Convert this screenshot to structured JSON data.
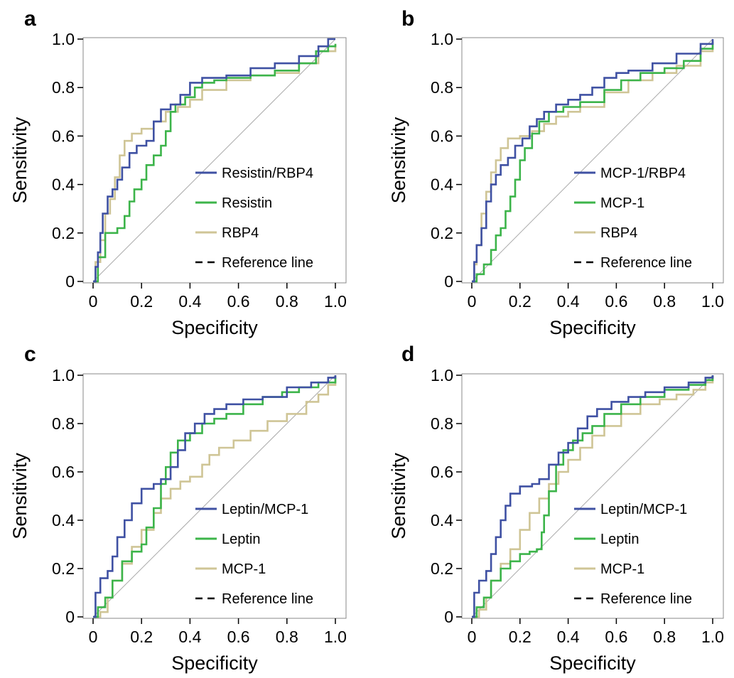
{
  "figure": {
    "panels": [
      {
        "letter": "a",
        "legend": [
          "Resistin/RBP4",
          "Resistin",
          "RBP4",
          "Reference line"
        ]
      },
      {
        "letter": "b",
        "legend": [
          "MCP-1/RBP4",
          "MCP-1",
          "RBP4",
          "Reference line"
        ]
      },
      {
        "letter": "c",
        "legend": [
          "Leptin/MCP-1",
          "Leptin",
          "MCP-1",
          "Reference line"
        ]
      },
      {
        "letter": "d",
        "legend": [
          "Leptin/MCP-1",
          "Leptin",
          "MCP-1",
          "Reference line"
        ]
      }
    ]
  },
  "colors": {
    "series1": "#3f51a3",
    "series2": "#3cb44a",
    "series3": "#cfc596",
    "reference": "#aaaaaa",
    "frame": "#888888"
  },
  "chart_data": [
    {
      "panel": "a",
      "type": "line",
      "xlabel": "Specificity",
      "ylabel": "Sensitivity",
      "xlim": [
        0,
        1
      ],
      "ylim": [
        0,
        1
      ],
      "xticks": [
        "0",
        "0.2",
        "0.4",
        "0.6",
        "0.8",
        "1.0"
      ],
      "yticks": [
        "0",
        "0.2",
        "0.4",
        "0.6",
        "0.8",
        "1.0"
      ],
      "grid": false,
      "legend_position": "bottom-right",
      "reference_line": {
        "label": "Reference line",
        "x": [
          0,
          1
        ],
        "y": [
          0,
          1
        ]
      },
      "series": [
        {
          "name": "Resistin/RBP4",
          "x": [
            0,
            0.01,
            0.02,
            0.03,
            0.04,
            0.06,
            0.08,
            0.1,
            0.12,
            0.15,
            0.18,
            0.22,
            0.25,
            0.28,
            0.32,
            0.36,
            0.4,
            0.45,
            0.55,
            0.65,
            0.75,
            0.85,
            0.93,
            0.97,
            1.0
          ],
          "y": [
            0,
            0.06,
            0.12,
            0.2,
            0.28,
            0.35,
            0.38,
            0.42,
            0.47,
            0.53,
            0.56,
            0.58,
            0.66,
            0.71,
            0.73,
            0.77,
            0.82,
            0.84,
            0.85,
            0.88,
            0.9,
            0.93,
            0.97,
            1.0,
            1.0
          ]
        },
        {
          "name": "Resistin",
          "x": [
            0,
            0.02,
            0.05,
            0.1,
            0.13,
            0.15,
            0.17,
            0.2,
            0.22,
            0.25,
            0.28,
            0.3,
            0.32,
            0.34,
            0.38,
            0.42,
            0.45,
            0.5,
            0.55,
            0.65,
            0.75,
            0.85,
            0.92,
            0.97,
            1.0
          ],
          "y": [
            0,
            0.1,
            0.2,
            0.22,
            0.27,
            0.33,
            0.38,
            0.42,
            0.48,
            0.52,
            0.56,
            0.62,
            0.7,
            0.73,
            0.76,
            0.8,
            0.82,
            0.83,
            0.84,
            0.85,
            0.87,
            0.9,
            0.95,
            0.97,
            0.98
          ]
        },
        {
          "name": "RBP4",
          "x": [
            0,
            0.01,
            0.03,
            0.05,
            0.07,
            0.09,
            0.11,
            0.13,
            0.16,
            0.2,
            0.25,
            0.3,
            0.35,
            0.4,
            0.45,
            0.55,
            0.65,
            0.75,
            0.85,
            0.93,
            1.0
          ],
          "y": [
            0,
            0.08,
            0.17,
            0.28,
            0.34,
            0.43,
            0.52,
            0.58,
            0.61,
            0.63,
            0.66,
            0.7,
            0.72,
            0.75,
            0.79,
            0.83,
            0.85,
            0.86,
            0.9,
            0.95,
            0.98
          ]
        }
      ]
    },
    {
      "panel": "b",
      "type": "line",
      "xlabel": "Specificity",
      "ylabel": "Sensitivity",
      "xlim": [
        0,
        1
      ],
      "ylim": [
        0,
        1
      ],
      "xticks": [
        "0",
        "0.2",
        "0.4",
        "0.6",
        "0.8",
        "1.0"
      ],
      "yticks": [
        "0",
        "0.2",
        "0.4",
        "0.6",
        "0.8",
        "1.0"
      ],
      "grid": false,
      "legend_position": "bottom-right",
      "reference_line": {
        "label": "Reference line",
        "x": [
          0,
          1
        ],
        "y": [
          0,
          1
        ]
      },
      "series": [
        {
          "name": "MCP-1/RBP4",
          "x": [
            0,
            0.01,
            0.02,
            0.04,
            0.06,
            0.08,
            0.1,
            0.12,
            0.15,
            0.18,
            0.21,
            0.24,
            0.27,
            0.3,
            0.35,
            0.4,
            0.45,
            0.5,
            0.55,
            0.6,
            0.65,
            0.75,
            0.85,
            0.95,
            1.0
          ],
          "y": [
            0,
            0.08,
            0.15,
            0.22,
            0.33,
            0.4,
            0.44,
            0.48,
            0.51,
            0.56,
            0.59,
            0.64,
            0.67,
            0.7,
            0.73,
            0.75,
            0.77,
            0.8,
            0.84,
            0.86,
            0.87,
            0.9,
            0.94,
            0.98,
            1.0
          ]
        },
        {
          "name": "MCP-1",
          "x": [
            0,
            0.02,
            0.05,
            0.08,
            0.1,
            0.12,
            0.14,
            0.16,
            0.18,
            0.2,
            0.22,
            0.25,
            0.28,
            0.32,
            0.38,
            0.45,
            0.55,
            0.62,
            0.7,
            0.8,
            0.88,
            0.95,
            1.0
          ],
          "y": [
            0,
            0.03,
            0.07,
            0.13,
            0.19,
            0.22,
            0.29,
            0.35,
            0.42,
            0.5,
            0.55,
            0.61,
            0.66,
            0.7,
            0.72,
            0.74,
            0.79,
            0.83,
            0.86,
            0.88,
            0.91,
            0.96,
            0.99
          ]
        },
        {
          "name": "RBP4",
          "x": [
            0,
            0.01,
            0.02,
            0.04,
            0.06,
            0.08,
            0.1,
            0.12,
            0.15,
            0.2,
            0.25,
            0.3,
            0.35,
            0.4,
            0.45,
            0.55,
            0.65,
            0.75,
            0.85,
            0.95,
            1.0
          ],
          "y": [
            0,
            0.07,
            0.15,
            0.28,
            0.37,
            0.45,
            0.5,
            0.55,
            0.59,
            0.6,
            0.62,
            0.65,
            0.68,
            0.7,
            0.72,
            0.78,
            0.83,
            0.86,
            0.89,
            0.95,
            0.99
          ]
        }
      ]
    },
    {
      "panel": "c",
      "type": "line",
      "xlabel": "Specificity",
      "ylabel": "Sensitivity",
      "xlim": [
        0,
        1
      ],
      "ylim": [
        0,
        1
      ],
      "xticks": [
        "0",
        "0.2",
        "0.4",
        "0.6",
        "0.8",
        "1.0"
      ],
      "yticks": [
        "0",
        "0.2",
        "0.4",
        "0.6",
        "0.8",
        "1.0"
      ],
      "grid": false,
      "legend_position": "bottom-right",
      "reference_line": {
        "label": "Reference line",
        "x": [
          0,
          1
        ],
        "y": [
          0,
          1
        ]
      },
      "series": [
        {
          "name": "Leptin/MCP-1",
          "x": [
            0,
            0.01,
            0.03,
            0.06,
            0.08,
            0.1,
            0.13,
            0.16,
            0.2,
            0.25,
            0.28,
            0.32,
            0.35,
            0.38,
            0.42,
            0.46,
            0.5,
            0.55,
            0.62,
            0.7,
            0.8,
            0.9,
            0.97,
            1.0
          ],
          "y": [
            0,
            0.1,
            0.16,
            0.19,
            0.25,
            0.33,
            0.4,
            0.47,
            0.53,
            0.55,
            0.57,
            0.62,
            0.69,
            0.76,
            0.8,
            0.84,
            0.86,
            0.88,
            0.9,
            0.91,
            0.95,
            0.97,
            0.99,
            1.0
          ]
        },
        {
          "name": "Leptin",
          "x": [
            0,
            0.02,
            0.05,
            0.08,
            0.12,
            0.16,
            0.2,
            0.22,
            0.25,
            0.28,
            0.3,
            0.32,
            0.35,
            0.4,
            0.45,
            0.5,
            0.55,
            0.62,
            0.7,
            0.78,
            0.85,
            0.93,
            1.0
          ],
          "y": [
            0,
            0.04,
            0.08,
            0.15,
            0.23,
            0.27,
            0.3,
            0.37,
            0.45,
            0.55,
            0.62,
            0.68,
            0.73,
            0.76,
            0.8,
            0.82,
            0.84,
            0.88,
            0.91,
            0.93,
            0.95,
            0.97,
            0.99
          ]
        },
        {
          "name": "MCP-1",
          "x": [
            0,
            0.03,
            0.06,
            0.08,
            0.12,
            0.16,
            0.2,
            0.25,
            0.28,
            0.32,
            0.36,
            0.4,
            0.45,
            0.48,
            0.52,
            0.58,
            0.65,
            0.72,
            0.8,
            0.88,
            0.93,
            0.97,
            1.0
          ],
          "y": [
            0,
            0.02,
            0.08,
            0.15,
            0.22,
            0.29,
            0.36,
            0.43,
            0.49,
            0.53,
            0.56,
            0.58,
            0.63,
            0.67,
            0.7,
            0.73,
            0.77,
            0.81,
            0.84,
            0.89,
            0.92,
            0.96,
            1.0
          ]
        }
      ]
    },
    {
      "panel": "d",
      "type": "line",
      "xlabel": "Specificity",
      "ylabel": "Sensitivity",
      "xlim": [
        0,
        1
      ],
      "ylim": [
        0,
        1
      ],
      "xticks": [
        "0",
        "0.2",
        "0.4",
        "0.6",
        "0.8",
        "1.0"
      ],
      "yticks": [
        "0",
        "0.2",
        "0.4",
        "0.6",
        "0.8",
        "1.0"
      ],
      "grid": false,
      "legend_position": "bottom-right",
      "reference_line": {
        "label": "Reference line",
        "x": [
          0,
          1
        ],
        "y": [
          0,
          1
        ]
      },
      "series": [
        {
          "name": "Leptin/MCP-1",
          "x": [
            0,
            0.01,
            0.03,
            0.06,
            0.08,
            0.1,
            0.12,
            0.14,
            0.16,
            0.2,
            0.25,
            0.28,
            0.32,
            0.36,
            0.4,
            0.44,
            0.48,
            0.52,
            0.58,
            0.65,
            0.72,
            0.8,
            0.9,
            0.97,
            1.0
          ],
          "y": [
            0,
            0.1,
            0.15,
            0.19,
            0.26,
            0.33,
            0.4,
            0.46,
            0.51,
            0.54,
            0.55,
            0.57,
            0.63,
            0.68,
            0.72,
            0.78,
            0.83,
            0.86,
            0.89,
            0.91,
            0.93,
            0.95,
            0.97,
            0.99,
            1.0
          ]
        },
        {
          "name": "Leptin",
          "x": [
            0,
            0.02,
            0.05,
            0.08,
            0.12,
            0.16,
            0.2,
            0.24,
            0.27,
            0.29,
            0.3,
            0.32,
            0.35,
            0.38,
            0.42,
            0.46,
            0.5,
            0.55,
            0.62,
            0.7,
            0.8,
            0.9,
            0.97,
            1.0
          ],
          "y": [
            0,
            0.04,
            0.08,
            0.15,
            0.2,
            0.23,
            0.26,
            0.27,
            0.28,
            0.35,
            0.42,
            0.52,
            0.63,
            0.69,
            0.73,
            0.76,
            0.79,
            0.84,
            0.88,
            0.91,
            0.94,
            0.96,
            0.98,
            1.0
          ]
        },
        {
          "name": "MCP-1",
          "x": [
            0,
            0.03,
            0.06,
            0.08,
            0.12,
            0.16,
            0.2,
            0.24,
            0.28,
            0.32,
            0.36,
            0.4,
            0.45,
            0.5,
            0.55,
            0.62,
            0.7,
            0.78,
            0.85,
            0.92,
            0.97,
            1.0
          ],
          "y": [
            0,
            0.03,
            0.08,
            0.15,
            0.22,
            0.28,
            0.36,
            0.43,
            0.49,
            0.55,
            0.6,
            0.65,
            0.7,
            0.75,
            0.79,
            0.84,
            0.88,
            0.9,
            0.92,
            0.94,
            0.97,
            1.0
          ]
        }
      ]
    }
  ]
}
